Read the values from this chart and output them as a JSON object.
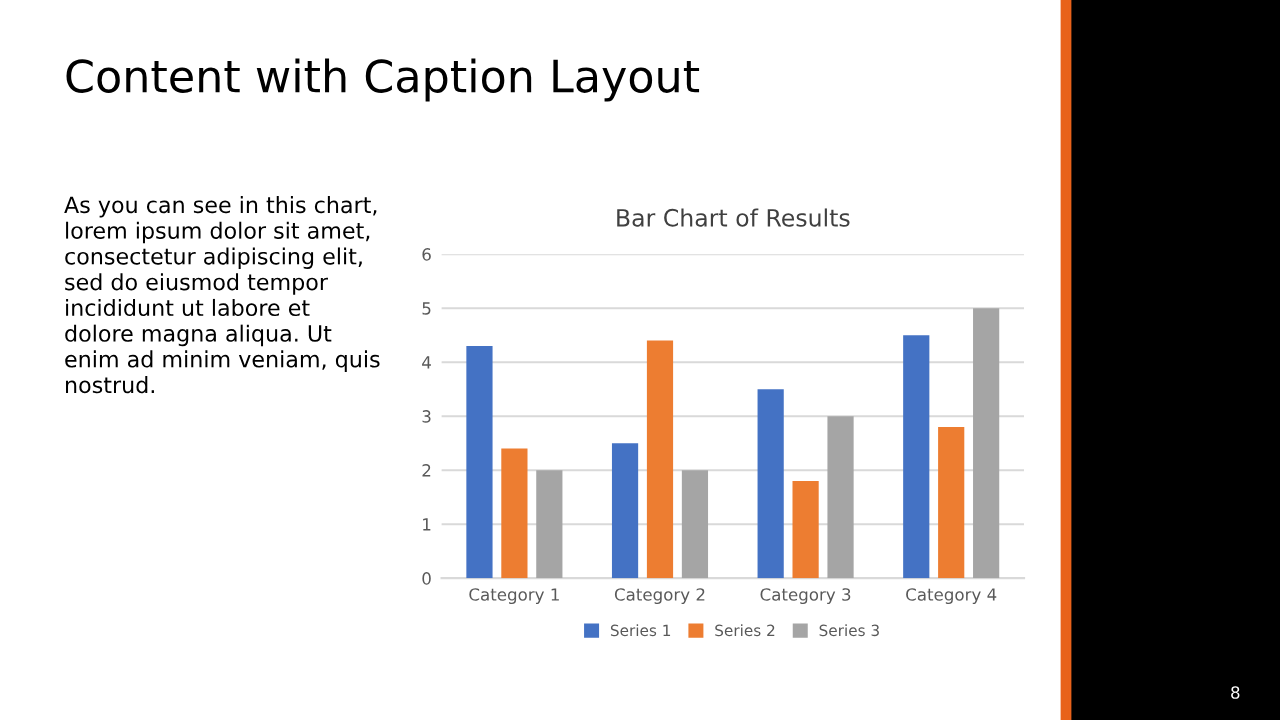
{
  "chart_data": {
    "type": "bar",
    "title": "Bar Chart of Results",
    "categories": [
      "Category 1",
      "Category 2",
      "Category 3",
      "Category 4"
    ],
    "series": [
      {
        "name": "Series 1",
        "color": "#4472c4",
        "values": [
          4.3,
          2.5,
          3.5,
          4.5
        ]
      },
      {
        "name": "Series 2",
        "color": "#ed7d31",
        "values": [
          2.4,
          4.4,
          1.8,
          2.8
        ]
      },
      {
        "name": "Series 3",
        "color": "#a5a5a5",
        "values": [
          2,
          2,
          3,
          5
        ]
      }
    ],
    "ylim": [
      0,
      6
    ],
    "yticks": [
      0,
      1,
      2,
      3,
      4,
      5,
      6
    ],
    "grid": "y",
    "legend": "bottom",
    "annotations": [
      "Content with Caption Layout",
      "As you can see in this chart,\nlorem ipsum dolor sit amet,\nconsectetur adipiscing elit,\nsed do eiusmod tempor\nincididunt ut labore et\ndolore magna aliqua. Ut\nenim ad minim veniam, quis\nnostrud.",
      "8"
    ]
  }
}
